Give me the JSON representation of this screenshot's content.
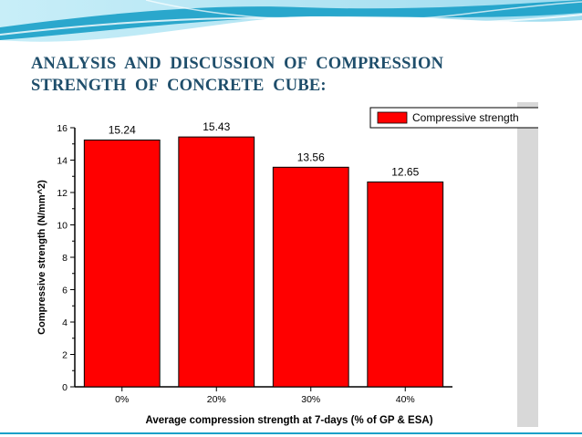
{
  "slide": {
    "title_line1": "ANALYSIS  AND  DISCUSSION  OF  COMPRESSION",
    "title_line2": "STRENGTH  OF  CONCRETE  CUBE:"
  },
  "colors": {
    "title": "#1f4e6b",
    "bar": "#ff0000",
    "banner_light": "#aee6f4",
    "banner_dark": "#1aa0c8",
    "panel": "#d8d8d8"
  },
  "chart_data": {
    "type": "bar",
    "title": "",
    "categories": [
      "0%",
      "20%",
      "30%",
      "40%"
    ],
    "series": [
      {
        "name": "Compressive strength",
        "values": [
          15.24,
          15.43,
          13.56,
          12.65
        ]
      }
    ],
    "data_labels": [
      "15.24",
      "15.43",
      "13.56",
      "12.65"
    ],
    "xlabel": "Average compression strength at 7-days (% of  GP & ESA)",
    "ylabel": "Compressive strength (N/mm^2)",
    "ylim": [
      0,
      16
    ],
    "yticks": [
      0,
      2,
      4,
      6,
      8,
      10,
      12,
      14,
      16
    ],
    "ytick_labels": [
      "0",
      "2",
      "4",
      "6",
      "8",
      "10",
      "12",
      "14",
      "16"
    ],
    "grid": false,
    "legend_position": "top-right"
  }
}
